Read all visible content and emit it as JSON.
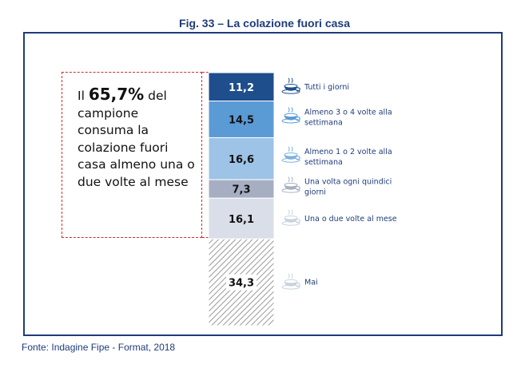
{
  "figure": {
    "title": "Fig. 33 – La colazione fuori casa",
    "source": "Fonte: Indagine Fipe - Format, 2018"
  },
  "callout": {
    "pre": "Il",
    "highlight": "65,7%",
    "post": "del campione consuma la colazione fuori casa almeno una o due volte al mese"
  },
  "icon": "coffee-cup-icon",
  "chart_data": {
    "type": "bar",
    "stacked": true,
    "orientation": "vertical-stack",
    "unit": "%",
    "total": 100,
    "categories": [
      "Tutti i giorni",
      "Almeno 3 o 4 volte alla settimana",
      "Almeno 1 o 2 volte alla settimana",
      "Una volta ogni quindici giorni",
      "Una o due volte al mese",
      "Mai"
    ],
    "label_lines": [
      [
        "Tutti i giorni"
      ],
      [
        "Almeno 3 o 4 volte alla",
        "settimana"
      ],
      [
        "Almeno 1 o 2 volte alla",
        "settimana"
      ],
      [
        "Una volta ogni quindici",
        "giorni"
      ],
      [
        "Una o due volte al mese"
      ],
      [
        "Mai"
      ]
    ],
    "values": [
      11.2,
      14.5,
      16.6,
      7.3,
      16.1,
      34.3
    ],
    "value_labels": [
      "11,2",
      "14,5",
      "16,6",
      "7,3",
      "16,1",
      "34,3"
    ],
    "colors": [
      "#1F4E8C",
      "#5B9BD5",
      "#9DC3E6",
      "#A6AFC2",
      "#D9DEE8",
      "hatch"
    ],
    "value_label_colors": [
      "#ffffff",
      "#111111",
      "#111111",
      "#111111",
      "#111111",
      "#111111"
    ]
  }
}
